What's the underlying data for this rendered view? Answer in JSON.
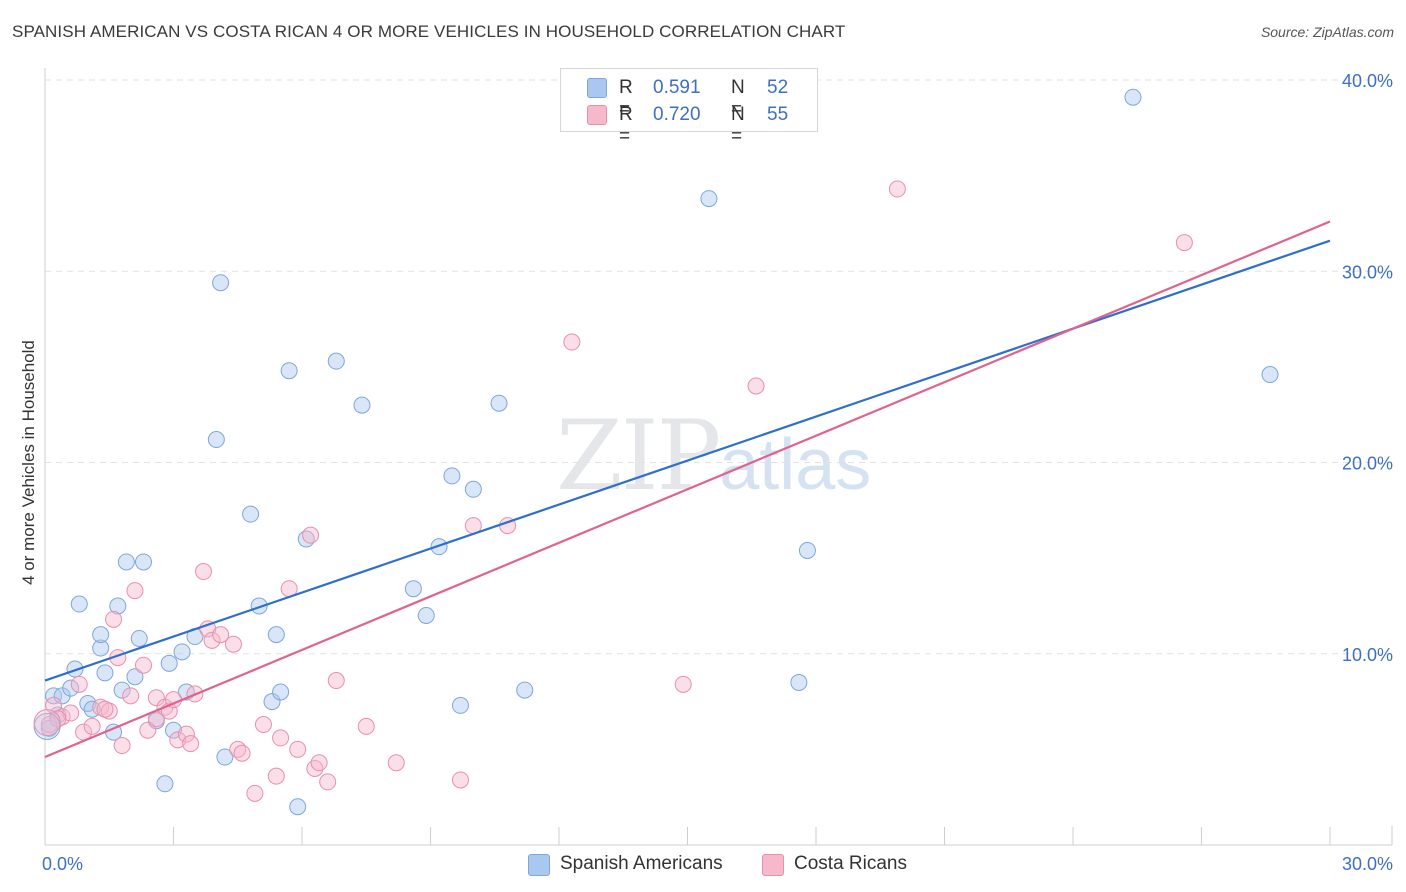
{
  "title": "SPANISH AMERICAN VS COSTA RICAN 4 OR MORE VEHICLES IN HOUSEHOLD CORRELATION CHART",
  "source": "Source: ZipAtlas.com",
  "watermark": {
    "zip": "ZIP",
    "atlas": "atlas"
  },
  "colors": {
    "blue_fill": "#aac8ef",
    "blue_stroke": "#7ea6dc",
    "blue_line": "#2f6fcc",
    "pink_fill": "#f6b9cc",
    "pink_stroke": "#e88fac",
    "pink_line": "#e0628e",
    "tick_label": "#3d6fc2",
    "grid": "#e2e2e2"
  },
  "legend": {
    "rows": [
      {
        "r_label": "R =",
        "r_value": "0.591",
        "n_label": "N =",
        "n_value": "52"
      },
      {
        "r_label": "R =",
        "r_value": "0.720",
        "n_label": "N =",
        "n_value": "55"
      }
    ]
  },
  "bottom_legend": [
    {
      "label": "Spanish Americans"
    },
    {
      "label": "Costa Ricans"
    }
  ],
  "chart_data": {
    "type": "scatter",
    "title": "SPANISH AMERICAN VS COSTA RICAN 4 OR MORE VEHICLES IN HOUSEHOLD CORRELATION CHART",
    "xlabel": "",
    "ylabel": "4 or more Vehicles in Household",
    "xlim": [
      0,
      30
    ],
    "ylim": [
      0,
      40
    ],
    "x_ticks": [
      0,
      3,
      6,
      9,
      12,
      15,
      18,
      21,
      24,
      27,
      30
    ],
    "x_tick_labels": [
      {
        "value": 0,
        "label": "0.0%"
      },
      {
        "value": 30,
        "label": "30.0%"
      }
    ],
    "y_tick_labels": [
      {
        "value": 10,
        "label": "10.0%"
      },
      {
        "value": 20,
        "label": "20.0%"
      },
      {
        "value": 30,
        "label": "30.0%"
      },
      {
        "value": 40,
        "label": "40.0%"
      }
    ],
    "grid": true,
    "series": [
      {
        "name": "Spanish Americans",
        "color": "#aac8ef",
        "trend": {
          "x": [
            0,
            30
          ],
          "y": [
            8.6,
            31.6
          ]
        },
        "points": [
          [
            0.1,
            6.1
          ],
          [
            0.2,
            7.8
          ],
          [
            0.4,
            7.8
          ],
          [
            0.6,
            8.2
          ],
          [
            0.7,
            9.2
          ],
          [
            0.8,
            12.6
          ],
          [
            1.0,
            7.4
          ],
          [
            1.1,
            7.1
          ],
          [
            1.3,
            10.3
          ],
          [
            1.3,
            11.0
          ],
          [
            1.4,
            9.0
          ],
          [
            1.6,
            5.9
          ],
          [
            1.7,
            12.5
          ],
          [
            1.8,
            8.1
          ],
          [
            1.9,
            14.8
          ],
          [
            2.1,
            8.8
          ],
          [
            2.2,
            10.8
          ],
          [
            2.3,
            14.8
          ],
          [
            2.6,
            6.5
          ],
          [
            2.8,
            3.2
          ],
          [
            2.9,
            9.5
          ],
          [
            3.0,
            6.0
          ],
          [
            3.2,
            10.1
          ],
          [
            3.5,
            10.9
          ],
          [
            3.3,
            8.0
          ],
          [
            4.0,
            21.2
          ],
          [
            4.1,
            29.4
          ],
          [
            4.2,
            4.6
          ],
          [
            4.8,
            17.3
          ],
          [
            5.0,
            12.5
          ],
          [
            5.3,
            7.5
          ],
          [
            5.4,
            11.0
          ],
          [
            5.5,
            8.0
          ],
          [
            5.7,
            24.8
          ],
          [
            5.9,
            2.0
          ],
          [
            6.1,
            16.0
          ],
          [
            6.8,
            25.3
          ],
          [
            7.4,
            23.0
          ],
          [
            8.6,
            13.4
          ],
          [
            8.9,
            12.0
          ],
          [
            9.2,
            15.6
          ],
          [
            9.5,
            19.3
          ],
          [
            9.7,
            7.3
          ],
          [
            10.0,
            18.6
          ],
          [
            10.6,
            23.1
          ],
          [
            11.2,
            8.1
          ],
          [
            15.5,
            33.8
          ],
          [
            17.6,
            8.5
          ],
          [
            17.8,
            15.4
          ],
          [
            25.4,
            39.1
          ],
          [
            28.6,
            24.6
          ],
          [
            0.3,
            6.8
          ]
        ]
      },
      {
        "name": "Costa Ricans",
        "color": "#f6b9cc",
        "trend": {
          "x": [
            0,
            30
          ],
          "y": [
            4.6,
            32.6
          ]
        },
        "points": [
          [
            0.1,
            6.3
          ],
          [
            0.2,
            7.3
          ],
          [
            0.4,
            6.7
          ],
          [
            0.6,
            6.9
          ],
          [
            0.8,
            8.4
          ],
          [
            0.9,
            5.9
          ],
          [
            1.1,
            6.2
          ],
          [
            1.3,
            7.2
          ],
          [
            1.5,
            7.0
          ],
          [
            1.6,
            11.8
          ],
          [
            1.7,
            9.8
          ],
          [
            1.8,
            5.2
          ],
          [
            2.0,
            7.8
          ],
          [
            2.1,
            13.3
          ],
          [
            2.3,
            9.4
          ],
          [
            2.4,
            6.0
          ],
          [
            2.6,
            6.6
          ],
          [
            2.6,
            7.7
          ],
          [
            2.8,
            7.2
          ],
          [
            2.9,
            7.0
          ],
          [
            3.0,
            7.6
          ],
          [
            3.1,
            5.5
          ],
          [
            3.3,
            5.8
          ],
          [
            3.4,
            5.3
          ],
          [
            3.5,
            7.9
          ],
          [
            3.7,
            14.3
          ],
          [
            3.8,
            11.3
          ],
          [
            3.9,
            10.7
          ],
          [
            4.1,
            11.0
          ],
          [
            4.4,
            10.5
          ],
          [
            4.5,
            5.0
          ],
          [
            4.6,
            4.8
          ],
          [
            4.9,
            2.7
          ],
          [
            5.1,
            6.3
          ],
          [
            5.4,
            3.6
          ],
          [
            5.5,
            5.6
          ],
          [
            5.7,
            13.4
          ],
          [
            5.9,
            5.0
          ],
          [
            6.2,
            16.2
          ],
          [
            6.3,
            4.0
          ],
          [
            6.4,
            4.3
          ],
          [
            6.6,
            3.3
          ],
          [
            6.8,
            8.6
          ],
          [
            7.5,
            6.2
          ],
          [
            8.2,
            4.3
          ],
          [
            9.7,
            3.4
          ],
          [
            10.0,
            16.7
          ],
          [
            10.8,
            16.7
          ],
          [
            12.3,
            26.3
          ],
          [
            14.9,
            8.4
          ],
          [
            16.6,
            24.0
          ],
          [
            19.9,
            34.3
          ],
          [
            26.6,
            31.5
          ],
          [
            0.3,
            6.6
          ],
          [
            1.4,
            7.1
          ]
        ]
      }
    ]
  }
}
